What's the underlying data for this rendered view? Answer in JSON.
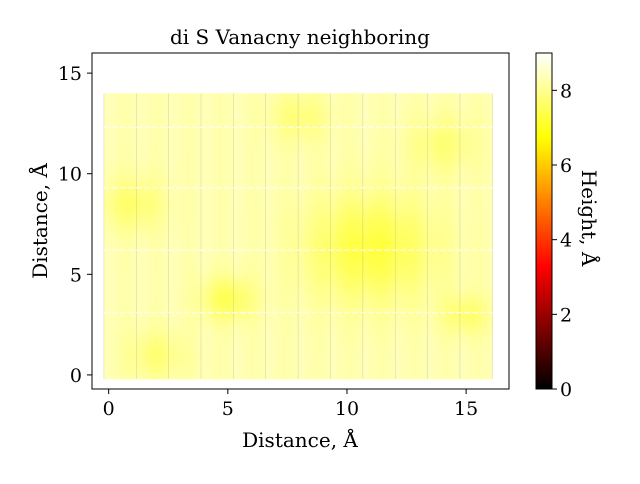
{
  "chart_data": {
    "type": "heatmap",
    "title": "di S Vanacny neighboring",
    "xlabel": "Distance, Å",
    "ylabel": "Distance, Å",
    "xlim": [
      -0.7,
      16.8
    ],
    "ylim": [
      -0.7,
      16.0
    ],
    "x_ticks": [
      0,
      5,
      10,
      15
    ],
    "y_ticks": [
      0,
      5,
      10,
      15
    ],
    "data_extent": {
      "x": [
        -0.2,
        16.1
      ],
      "y": [
        -0.2,
        14.0
      ]
    },
    "grid": false,
    "colorbar": {
      "label": "Height, Å",
      "range": [
        0,
        9
      ],
      "ticks": [
        0,
        2,
        4,
        6,
        8
      ],
      "colormap": "hot"
    },
    "height_field": {
      "base": 8.4,
      "features": [
        {
          "x": 11.0,
          "y": 6.3,
          "radius": 2.6,
          "height": 7.4
        },
        {
          "x": 5.0,
          "y": 3.8,
          "radius": 1.1,
          "height": 7.6
        },
        {
          "x": 1.0,
          "y": 8.5,
          "radius": 1.3,
          "height": 7.8
        },
        {
          "x": 14.0,
          "y": 11.5,
          "radius": 1.4,
          "height": 7.9
        },
        {
          "x": 8.0,
          "y": 12.8,
          "radius": 1.2,
          "height": 7.9
        },
        {
          "x": 2.0,
          "y": 1.0,
          "radius": 1.2,
          "height": 7.9
        },
        {
          "x": 15.0,
          "y": 3.0,
          "radius": 1.0,
          "height": 7.8
        }
      ]
    }
  }
}
